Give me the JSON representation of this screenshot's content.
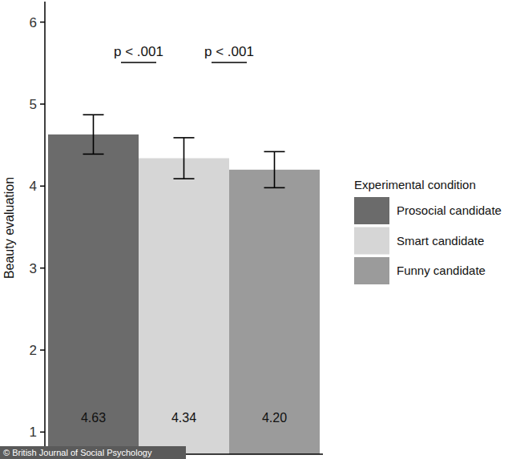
{
  "chart_data": {
    "type": "bar",
    "y_label": "Beauty evaluation",
    "categories": [
      "Prosocial candidate",
      "Smart candidate",
      "Funny candidate"
    ],
    "values": [
      4.63,
      4.34,
      4.2
    ],
    "value_labels": [
      "4.63",
      "4.34",
      "4.20"
    ],
    "errors": [
      0.24,
      0.25,
      0.22
    ],
    "colors": [
      "#6b6b6b",
      "#d6d6d6",
      "#9b9b9b"
    ],
    "ylim": [
      0.73,
      6.25
    ],
    "yticks": [
      1,
      2,
      3,
      4,
      5,
      6
    ],
    "data_labels": true,
    "tick_labels": "y",
    "grid": false,
    "legend": "right",
    "legend_title": "Experimental condition",
    "comparisons": [
      {
        "label": "p < .001",
        "from": 0,
        "to": 1
      },
      {
        "label": "p < .001",
        "from": 1,
        "to": 2
      }
    ],
    "source": "© British Journal of Social Psychology"
  }
}
